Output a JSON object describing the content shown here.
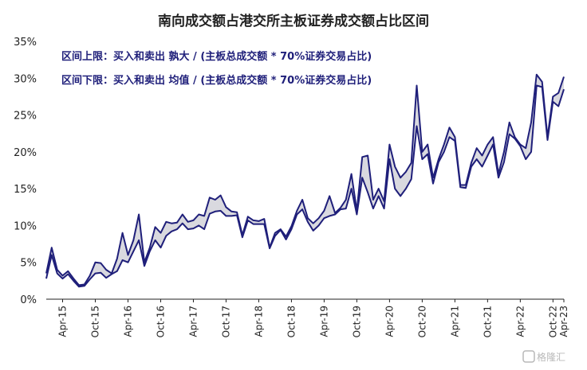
{
  "chart_data": {
    "type": "area",
    "title": "南向成交额占港交所主板证券成交额占比区间",
    "xlabel": "",
    "ylabel": "",
    "ylim": [
      0,
      35
    ],
    "y_ticks": [
      "0%",
      "5%",
      "10%",
      "15%",
      "20%",
      "25%",
      "30%",
      "35%"
    ],
    "y_tick_values": [
      0,
      5,
      10,
      15,
      20,
      25,
      30,
      35
    ],
    "x_ticks": [
      "Apr-15",
      "Oct-15",
      "Apr-16",
      "Oct-16",
      "Apr-17",
      "Oct-17",
      "Apr-18",
      "Oct-18",
      "Apr-19",
      "Oct-19",
      "Apr-20",
      "Oct-20",
      "Apr-21",
      "Oct-21",
      "Apr-22",
      "Oct-22",
      "Apr-23"
    ],
    "x_start": "Jan-15",
    "x_end": "May-23",
    "x_tick_start": "Apr-15",
    "x_tick_step_months": 6,
    "grid": false,
    "legend": "none",
    "annotations": [
      "区间上限：买入和卖出 孰大 / (主板总成交额 * 70%证券交易占比)",
      "区间下限：买入和卖出 均值 / (主板总成交额 * 70%证券交易占比)"
    ],
    "series": [
      {
        "name": "区间上限",
        "color": "#1f1f7a",
        "values": [
          3.5,
          7,
          4,
          3.2,
          3.8,
          2.8,
          1.9,
          2,
          3.2,
          5,
          4.9,
          4,
          3.5,
          5.5,
          9,
          6,
          8,
          11.5,
          5,
          7,
          9.8,
          9,
          10.5,
          10.3,
          10.4,
          11.5,
          10.5,
          10.7,
          11.5,
          11.3,
          13.8,
          13.5,
          14.1,
          12.5,
          11.9,
          11.8,
          8.7,
          11.2,
          10.7,
          10.6,
          10.9,
          7,
          9,
          9.5,
          8.5,
          9.9,
          12,
          13.5,
          11,
          10.3,
          11,
          12,
          14,
          11.7,
          12.4,
          13.5,
          17,
          12,
          19.3,
          19.5,
          13.5,
          15,
          13.3,
          21,
          18,
          16.5,
          17.3,
          18.5,
          29,
          20,
          21,
          16.5,
          19,
          21,
          23.3,
          22,
          15.5,
          15.5,
          18.5,
          20.5,
          19.5,
          21,
          22,
          17,
          20,
          24,
          22,
          21,
          20.5,
          24,
          30.5,
          29.5,
          22,
          27.5,
          28,
          30.2
        ]
      },
      {
        "name": "区间下限",
        "color": "#1f1f7a",
        "values": [
          2.8,
          6,
          3.5,
          2.8,
          3.4,
          2.5,
          1.7,
          1.8,
          2.7,
          3.5,
          3.6,
          2.9,
          3.4,
          3.8,
          5.3,
          5,
          6.5,
          8,
          4.5,
          6.5,
          8,
          7,
          8.6,
          9.2,
          9.5,
          10.3,
          9.5,
          9.6,
          10,
          9.5,
          11.6,
          11.9,
          12,
          11.3,
          11.3,
          11.4,
          8.4,
          10.7,
          10.2,
          10.2,
          10.2,
          6.9,
          8.6,
          9.4,
          8.1,
          9.5,
          11.5,
          12.2,
          10.5,
          9.3,
          10,
          11,
          11.3,
          11.5,
          12.2,
          12.3,
          15,
          11.5,
          16.5,
          14.5,
          12.3,
          14,
          12.3,
          19,
          15,
          14,
          15,
          16.3,
          23.5,
          19,
          19.7,
          15.7,
          18.6,
          20,
          22,
          21.5,
          15.2,
          15.1,
          18,
          19,
          18,
          19.5,
          21,
          16.5,
          18.6,
          22.4,
          21.8,
          20.8,
          19,
          20,
          29,
          28.8,
          21.6,
          26.8,
          26.2,
          28.5
        ]
      }
    ]
  },
  "watermark": "格隆汇"
}
